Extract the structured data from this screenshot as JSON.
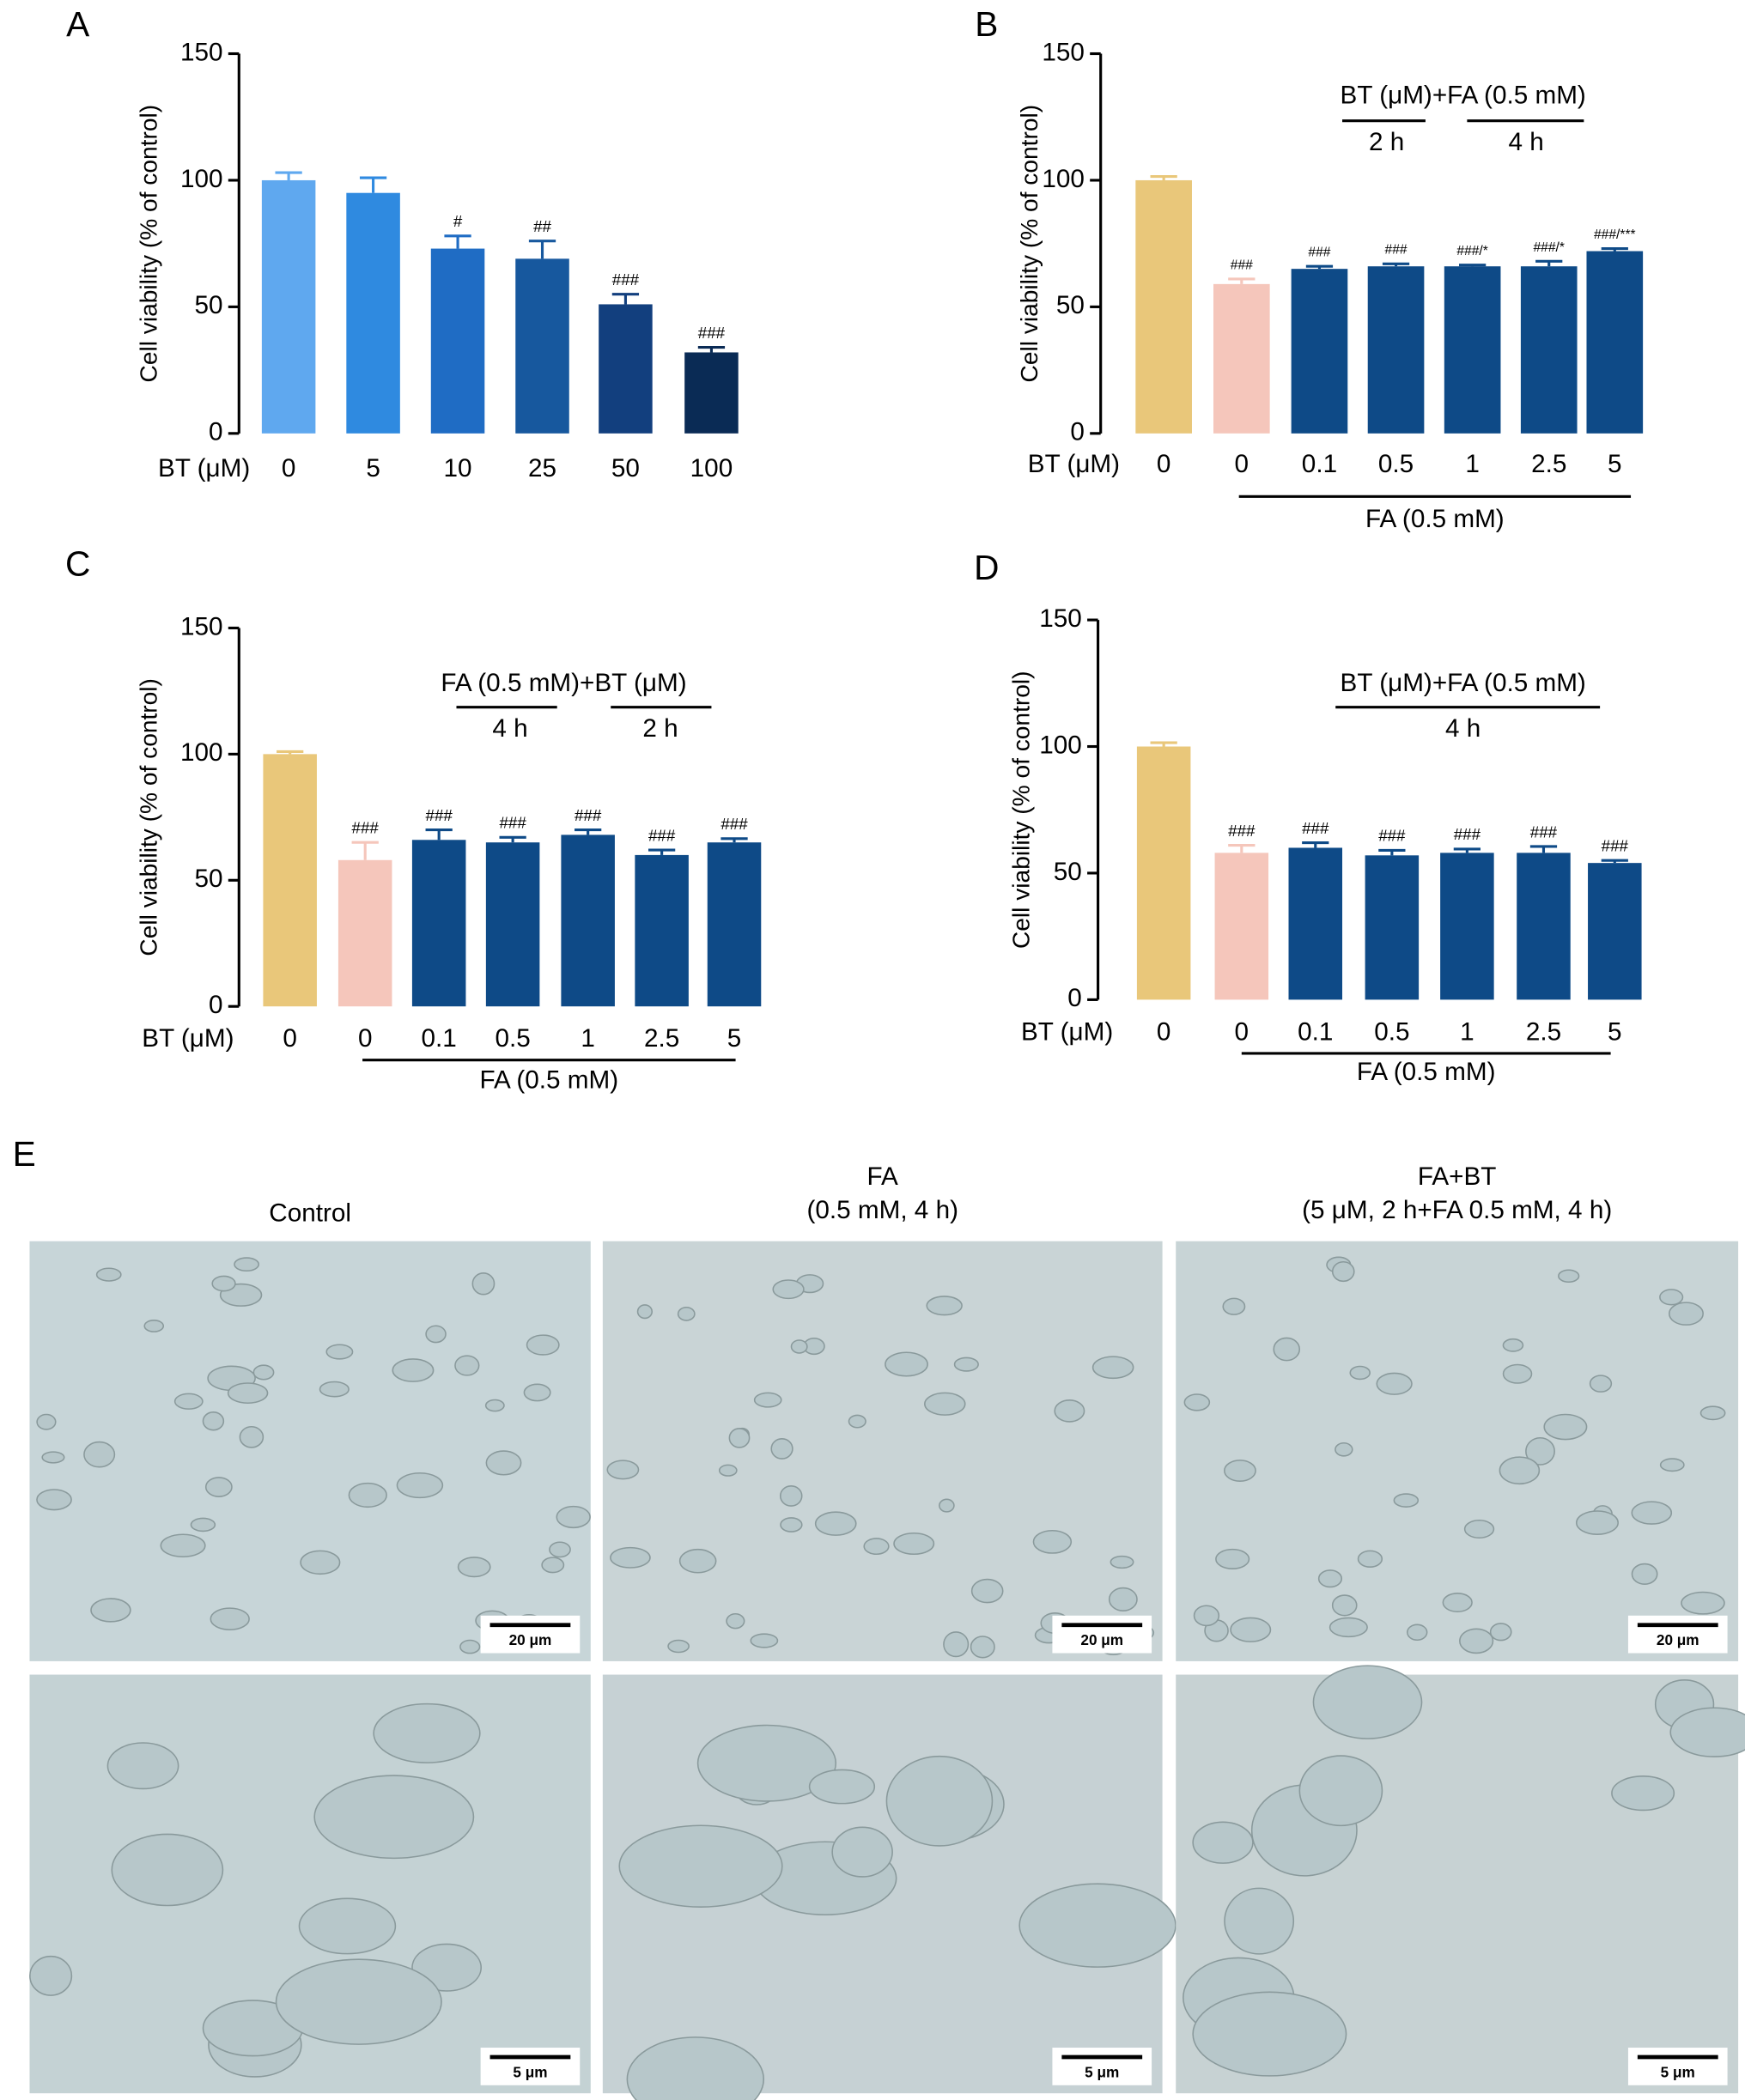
{
  "chart_data": [
    {
      "type": "bar",
      "panel": "A",
      "y_label": "Cell viability (% of control)",
      "x_label": "BT (μM)",
      "categories": [
        "0",
        "5",
        "10",
        "25",
        "50",
        "100"
      ],
      "values": [
        100,
        95,
        73,
        69,
        51,
        32
      ],
      "errors": [
        3,
        6,
        5,
        7,
        4,
        2
      ],
      "annotations": [
        null,
        null,
        "#",
        "##",
        "###",
        "###"
      ],
      "colors": [
        "#5fa8ef",
        "#2f8ae0",
        "#1f6cc4",
        "#17589e",
        "#123f7e",
        "#0a2b55"
      ],
      "ylim": [
        0,
        150
      ],
      "yticks": [
        0,
        50,
        100,
        150
      ]
    },
    {
      "type": "bar",
      "panel": "B",
      "y_label": "Cell viability (% of control)",
      "x_label": "BT (μM)",
      "categories": [
        "0",
        "0",
        "0.1",
        "0.5",
        "1",
        "2.5",
        "5"
      ],
      "values": [
        100,
        59,
        65,
        66,
        66,
        66,
        72
      ],
      "errors": [
        1.5,
        2,
        1,
        1,
        0.5,
        2,
        1
      ],
      "annotations": [
        null,
        "###",
        "###",
        "###",
        "###/*",
        "###/*",
        "###/***"
      ],
      "colors": [
        "#e9c77a",
        "#f5c6bb",
        "#0e4a87",
        "#0e4a87",
        "#0e4a87",
        "#0e4a87",
        "#0e4a87"
      ],
      "ylim": [
        0,
        150
      ],
      "yticks": [
        0,
        50,
        100,
        150
      ],
      "bracket_label": "FA (0.5 mM)",
      "treatment_label": "BT (μM)+FA (0.5 mM)",
      "time_labels": [
        "2 h",
        "4 h"
      ]
    },
    {
      "type": "bar",
      "panel": "C",
      "y_label": "Cell viability (% of control)",
      "x_label": "BT (μM)",
      "categories": [
        "0",
        "0",
        "0.1",
        "0.5",
        "1",
        "2.5",
        "5"
      ],
      "values": [
        100,
        58,
        66,
        65,
        68,
        60,
        65
      ],
      "errors": [
        1,
        7,
        4,
        2,
        2,
        2,
        1.5
      ],
      "annotations": [
        null,
        "###",
        "###",
        "###",
        "###",
        "###",
        "###"
      ],
      "colors": [
        "#e9c77a",
        "#f5c6bb",
        "#0e4a87",
        "#0e4a87",
        "#0e4a87",
        "#0e4a87",
        "#0e4a87"
      ],
      "ylim": [
        0,
        150
      ],
      "yticks": [
        0,
        50,
        100,
        150
      ],
      "bracket_label": "FA (0.5 mM)",
      "treatment_label": "FA (0.5 mM)+BT (μM)",
      "time_labels": [
        "4 h",
        "2 h"
      ]
    },
    {
      "type": "bar",
      "panel": "D",
      "y_label": "Cell viability (% of control)",
      "x_label": "BT (μM)",
      "categories": [
        "0",
        "0",
        "0.1",
        "0.5",
        "1",
        "2.5",
        "5"
      ],
      "values": [
        100,
        58,
        60,
        57,
        58,
        58,
        54
      ],
      "errors": [
        1.5,
        3,
        2,
        2,
        1.5,
        2.5,
        1
      ],
      "annotations": [
        null,
        "###",
        "###",
        "###",
        "###",
        "###",
        "###"
      ],
      "colors": [
        "#e9c77a",
        "#f5c6bb",
        "#0e4a87",
        "#0e4a87",
        "#0e4a87",
        "#0e4a87",
        "#0e4a87"
      ],
      "ylim": [
        0,
        150
      ],
      "yticks": [
        0,
        50,
        100,
        150
      ],
      "bracket_label": "FA (0.5 mM)",
      "treatment_label": "BT (μM)+FA (0.5 mM)",
      "time_labels": [
        "4 h"
      ]
    }
  ],
  "panel_e": {
    "label": "E",
    "columns": [
      {
        "title": [
          "Control"
        ]
      },
      {
        "title": [
          "FA",
          "(0.5 mM, 4 h)"
        ]
      },
      {
        "title": [
          "FA+BT",
          "(5 μM, 2 h+FA 0.5 mM, 4 h)"
        ]
      }
    ],
    "scale_bars": [
      [
        "20 μm",
        "20 μm",
        "20 μm"
      ],
      [
        "5 μm",
        "5 μm",
        "5 μm"
      ]
    ]
  }
}
